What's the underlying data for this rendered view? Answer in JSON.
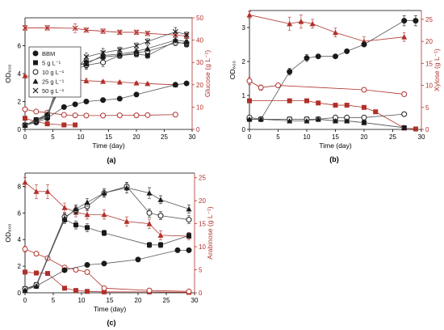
{
  "colors": {
    "od": "#1a1a1a",
    "sugar": "#b0302a",
    "axis": "#000000",
    "series_line": "#555555"
  },
  "legend": [
    {
      "marker": "filled-circle",
      "label": "BBM"
    },
    {
      "marker": "filled-square",
      "label": "5 g L⁻¹"
    },
    {
      "marker": "open-circle",
      "label": "10 g L⁻¹"
    },
    {
      "marker": "filled-triangle",
      "label": "25 g L⁻¹"
    },
    {
      "marker": "cross",
      "label": "50 g L⁻¹"
    }
  ],
  "chart_data": [
    {
      "panel_label": "(a)",
      "type": "line",
      "xlabel": "Time (day)",
      "ylabel_left": "OD₆₀₀",
      "ylabel_right": "Glucose (g L⁻¹)",
      "xlim": [
        0,
        30
      ],
      "ylim_left": [
        0,
        8
      ],
      "ylim_right": [
        0,
        50
      ],
      "xticks": [
        0,
        5,
        10,
        15,
        20,
        25,
        30
      ],
      "yticks_left": [
        0,
        2,
        4,
        6
      ],
      "yticks_right": [
        0,
        10,
        20,
        30,
        40,
        50
      ],
      "od_series": [
        {
          "name": "BBM",
          "marker": "filled-circle",
          "x": [
            0,
            2,
            4,
            7,
            9,
            11,
            14,
            17,
            20,
            27,
            29
          ],
          "y": [
            0.3,
            0.5,
            0.8,
            1.6,
            1.8,
            2.0,
            2.1,
            2.2,
            2.5,
            3.2,
            3.3
          ],
          "err": [
            0.05,
            0.05,
            0.08,
            0.1,
            0.1,
            0.1,
            0.1,
            0.1,
            0.1,
            0.15,
            0.15
          ]
        },
        {
          "name": "5 g L⁻¹",
          "marker": "filled-square",
          "x": [
            0,
            2,
            4,
            7,
            9,
            11,
            14,
            17,
            20,
            22,
            27,
            29
          ],
          "y": [
            0.3,
            0.7,
            1.0,
            3.6,
            4.5,
            4.8,
            5.2,
            5.3,
            5.4,
            5.3,
            6.3,
            6.1
          ],
          "err": [
            0.05,
            0.1,
            0.1,
            0.3,
            0.3,
            0.3,
            0.3,
            0.2,
            0.2,
            0.2,
            0.2,
            0.2
          ]
        },
        {
          "name": "10 g L⁻¹",
          "marker": "open-circle",
          "x": [
            0,
            2,
            4,
            7,
            9,
            11,
            14,
            17,
            20,
            22,
            27,
            29
          ],
          "y": [
            0.3,
            0.6,
            1.0,
            4.6,
            4.3,
            4.6,
            4.8,
            5.3,
            5.5,
            5.6,
            6.2,
            6.2
          ],
          "err": [
            0.05,
            0.1,
            0.1,
            0.3,
            0.3,
            0.3,
            0.3,
            0.2,
            0.2,
            0.2,
            0.2,
            0.2
          ]
        },
        {
          "name": "25 g L⁻¹",
          "marker": "filled-triangle",
          "x": [
            0,
            2,
            4,
            7,
            9,
            11,
            14,
            17,
            20,
            22,
            27,
            29
          ],
          "y": [
            0.3,
            0.7,
            1.1,
            4.0,
            4.6,
            4.7,
            5.3,
            5.4,
            5.6,
            5.8,
            6.4,
            6.3
          ],
          "err": [
            0.05,
            0.1,
            0.1,
            0.3,
            0.3,
            0.3,
            0.3,
            0.2,
            0.2,
            0.2,
            0.2,
            0.2
          ]
        },
        {
          "name": "50 g L⁻¹",
          "marker": "cross",
          "x": [
            0,
            2,
            4,
            7,
            9,
            11,
            14,
            17,
            20,
            22,
            27,
            29
          ],
          "y": [
            0.3,
            0.6,
            0.9,
            3.9,
            4.1,
            5.2,
            5.5,
            5.7,
            6.0,
            6.3,
            7.0,
            6.8
          ],
          "err": [
            0.05,
            0.1,
            0.1,
            0.3,
            0.3,
            0.3,
            0.3,
            0.2,
            0.2,
            0.2,
            0.3,
            0.2
          ]
        }
      ],
      "sugar_series": [
        {
          "name": "5 g L⁻¹",
          "marker": "filled-square",
          "x": [
            0,
            2,
            4,
            7,
            9
          ],
          "y": [
            5,
            3.5,
            2.5,
            2,
            2
          ],
          "err": [
            0.3,
            0.3,
            0.3,
            0.2,
            0.2
          ]
        },
        {
          "name": "10 g L⁻¹",
          "marker": "open-circle",
          "x": [
            0,
            2,
            4,
            7,
            9,
            11,
            14,
            17,
            20,
            22,
            27
          ],
          "y": [
            9,
            8,
            7.5,
            6.5,
            6.3,
            6.2,
            6.2,
            6.3,
            6.3,
            6.4,
            6.6
          ],
          "err": [
            0.4,
            0.4,
            0.3,
            0.3,
            0.3,
            0.3,
            0.3,
            0.3,
            0.3,
            0.3,
            0.3
          ]
        },
        {
          "name": "25 g L⁻¹",
          "marker": "filled-triangle",
          "x": [
            0,
            2,
            4,
            7,
            9,
            11,
            14,
            17,
            20,
            22,
            27
          ],
          "y": [
            24,
            23.5,
            23,
            22.5,
            22.3,
            21.8,
            21.5,
            21.2,
            20.8,
            20.5,
            20.0
          ],
          "err": [
            0.5,
            0.5,
            0.5,
            0.5,
            0.5,
            1.0,
            0.5,
            0.5,
            0.5,
            0.5,
            0.5
          ]
        },
        {
          "name": "50 g L⁻¹",
          "marker": "cross",
          "x": [
            0,
            4,
            9,
            11,
            14,
            17,
            20,
            22,
            27,
            29
          ],
          "y": [
            45.5,
            45.5,
            45.3,
            44.5,
            44.0,
            43.5,
            43.5,
            43.0,
            42.3,
            41.8
          ],
          "err": [
            1.0,
            1.0,
            2.0,
            1.0,
            1.0,
            1.0,
            1.0,
            1.0,
            1.0,
            1.0
          ]
        }
      ]
    },
    {
      "panel_label": "(b)",
      "type": "line",
      "xlabel": "Time (day)",
      "ylabel_left": "OD₆₀₀",
      "ylabel_right": "Xylose (g L⁻¹)",
      "xlim": [
        0,
        30
      ],
      "ylim_left": [
        0,
        3.5
      ],
      "ylim_right": [
        0,
        27
      ],
      "xticks": [
        0,
        5,
        10,
        15,
        20,
        25,
        30
      ],
      "yticks_left": [
        0,
        1,
        2,
        3
      ],
      "yticks_right": [
        0,
        5,
        10,
        15,
        20,
        25
      ],
      "od_series": [
        {
          "name": "BBM",
          "marker": "filled-circle",
          "x": [
            0,
            2,
            7,
            10,
            12,
            15,
            17,
            20,
            27,
            29
          ],
          "y": [
            0.3,
            0.3,
            1.7,
            2.1,
            2.15,
            2.15,
            2.3,
            2.5,
            3.2,
            3.2
          ],
          "err": [
            0.03,
            0.03,
            0.1,
            0.1,
            0.05,
            0.05,
            0.05,
            0.05,
            0.15,
            0.15
          ]
        },
        {
          "name": "5 g L⁻¹",
          "marker": "filled-square",
          "x": [
            0,
            2,
            7,
            10,
            12,
            15,
            17,
            20,
            27
          ],
          "y": [
            0.3,
            0.3,
            0.3,
            0.3,
            0.3,
            0.25,
            0.25,
            0.2,
            0.05
          ],
          "err": [
            0.02,
            0.02,
            0.02,
            0.02,
            0.02,
            0.02,
            0.02,
            0.02,
            0.02
          ]
        },
        {
          "name": "10 g L⁻¹",
          "marker": "open-circle",
          "x": [
            0,
            2,
            7,
            10,
            12,
            15,
            17,
            20,
            27
          ],
          "y": [
            0.35,
            0.3,
            0.3,
            0.3,
            0.3,
            0.35,
            0.35,
            0.35,
            0.45
          ],
          "err": [
            0.02,
            0.02,
            0.02,
            0.02,
            0.02,
            0.02,
            0.02,
            0.02,
            0.02
          ]
        },
        {
          "name": "25 g L⁻¹",
          "marker": "filled-triangle",
          "x": [
            0,
            2,
            7,
            10,
            12,
            15,
            17,
            20,
            27
          ],
          "y": [
            0.3,
            0.3,
            0.25,
            0.25,
            0.3,
            0.25,
            0.25,
            0.2,
            0.05
          ],
          "err": [
            0.02,
            0.02,
            0.02,
            0.02,
            0.02,
            0.02,
            0.02,
            0.02,
            0.02
          ]
        }
      ],
      "sugar_series": [
        {
          "name": "5 g L⁻¹",
          "marker": "filled-square",
          "x": [
            0,
            7,
            10,
            12,
            15,
            17,
            20,
            22,
            27,
            29
          ],
          "y": [
            6.5,
            6.5,
            6.5,
            6,
            5.5,
            5.5,
            5,
            4,
            0.3,
            0.1
          ],
          "err": [
            0.2,
            0.2,
            0.2,
            0.2,
            0.2,
            0.2,
            0.2,
            0.2,
            0.1,
            0.1
          ]
        },
        {
          "name": "10 g L⁻¹",
          "marker": "open-circle",
          "x": [
            0,
            2,
            5,
            20,
            27
          ],
          "y": [
            11,
            9.5,
            10,
            9,
            8
          ],
          "err": [
            0.8,
            0.6,
            0.5,
            0.5,
            0.5
          ]
        },
        {
          "name": "25 g L⁻¹",
          "marker": "filled-triangle",
          "x": [
            0,
            7,
            9,
            11,
            15,
            20,
            27
          ],
          "y": [
            26,
            24,
            24.5,
            24,
            22,
            20,
            21
          ],
          "err": [
            0.8,
            1.5,
            1.5,
            1.0,
            1.0,
            1.0,
            1.0
          ]
        }
      ]
    },
    {
      "panel_label": "(c)",
      "type": "line",
      "xlabel": "Time (day)",
      "ylabel_left": "OD₆₀₀",
      "ylabel_right": "Arabinose (g L⁻¹)",
      "xlim": [
        0,
        30
      ],
      "ylim_left": [
        0,
        9
      ],
      "ylim_right": [
        0,
        26
      ],
      "xticks": [
        0,
        5,
        10,
        15,
        20,
        25,
        30
      ],
      "yticks_left": [
        0,
        2,
        4,
        6,
        8
      ],
      "yticks_right": [
        0,
        5,
        10,
        15,
        20,
        25
      ],
      "od_series": [
        {
          "name": "BBM",
          "marker": "filled-circle",
          "x": [
            0,
            2,
            7,
            11,
            14,
            20,
            27,
            29
          ],
          "y": [
            0.3,
            0.5,
            1.7,
            2.1,
            2.2,
            2.5,
            3.2,
            3.2
          ],
          "err": [
            0.05,
            0.05,
            0.1,
            0.1,
            0.1,
            0.1,
            0.15,
            0.15
          ]
        },
        {
          "name": "5 g L⁻¹",
          "marker": "filled-square",
          "x": [
            0,
            2,
            7,
            9,
            11,
            14,
            22,
            24,
            29
          ],
          "y": [
            0.3,
            0.6,
            5.5,
            5.1,
            4.9,
            4.5,
            3.6,
            3.6,
            4.3
          ],
          "err": [
            0.1,
            0.1,
            0.3,
            0.3,
            0.3,
            0.2,
            0.2,
            0.2,
            0.2
          ]
        },
        {
          "name": "10 g L⁻¹",
          "marker": "open-circle",
          "x": [
            0,
            2,
            7,
            9,
            11,
            14,
            18,
            22,
            24,
            29
          ],
          "y": [
            0.3,
            0.6,
            5.7,
            6.2,
            6.5,
            7.5,
            8.0,
            6.0,
            5.8,
            5.5
          ],
          "err": [
            0.1,
            0.1,
            0.3,
            0.3,
            0.3,
            0.3,
            0.3,
            0.3,
            0.3,
            0.3
          ]
        },
        {
          "name": "25 g L⁻¹",
          "marker": "filled-triangle",
          "x": [
            0,
            2,
            7,
            9,
            11,
            14,
            18,
            22,
            24,
            29
          ],
          "y": [
            0.2,
            0.5,
            5.6,
            6.3,
            6.8,
            7.5,
            7.9,
            7.5,
            7.0,
            6.3
          ],
          "err": [
            0.1,
            0.1,
            0.3,
            0.3,
            0.3,
            0.3,
            0.4,
            0.4,
            0.3,
            0.3
          ]
        }
      ],
      "sugar_series": [
        {
          "name": "5 g L⁻¹",
          "marker": "filled-square",
          "x": [
            0,
            2,
            4,
            7,
            9,
            11,
            14,
            22,
            29
          ],
          "y": [
            4.5,
            4.3,
            4.2,
            1,
            0.5,
            0.3,
            0.2,
            0.2,
            0.1
          ],
          "err": [
            0.3,
            0.3,
            0.3,
            0.2,
            0.1,
            0.1,
            0.1,
            0.1,
            0.1
          ]
        },
        {
          "name": "10 g L⁻¹",
          "marker": "open-circle",
          "x": [
            0,
            2,
            4,
            7,
            9,
            11,
            14,
            22,
            29
          ],
          "y": [
            9.5,
            8.5,
            7.5,
            5.5,
            5,
            4.5,
            1,
            0.5,
            0.3
          ],
          "err": [
            0.6,
            0.4,
            0.4,
            0.3,
            0.3,
            0.3,
            0.2,
            0.1,
            0.1
          ]
        },
        {
          "name": "25 g L⁻¹",
          "marker": "filled-triangle",
          "x": [
            0,
            2,
            4,
            7,
            9,
            11,
            14,
            18,
            22,
            24,
            29
          ],
          "y": [
            24,
            22,
            22,
            18.5,
            17.5,
            17,
            17,
            15.5,
            15,
            12.5,
            12.3
          ],
          "err": [
            1.0,
            1.5,
            1.5,
            1.0,
            1.0,
            1.0,
            1.0,
            1.0,
            1.0,
            1.0,
            0.8
          ]
        }
      ]
    }
  ]
}
